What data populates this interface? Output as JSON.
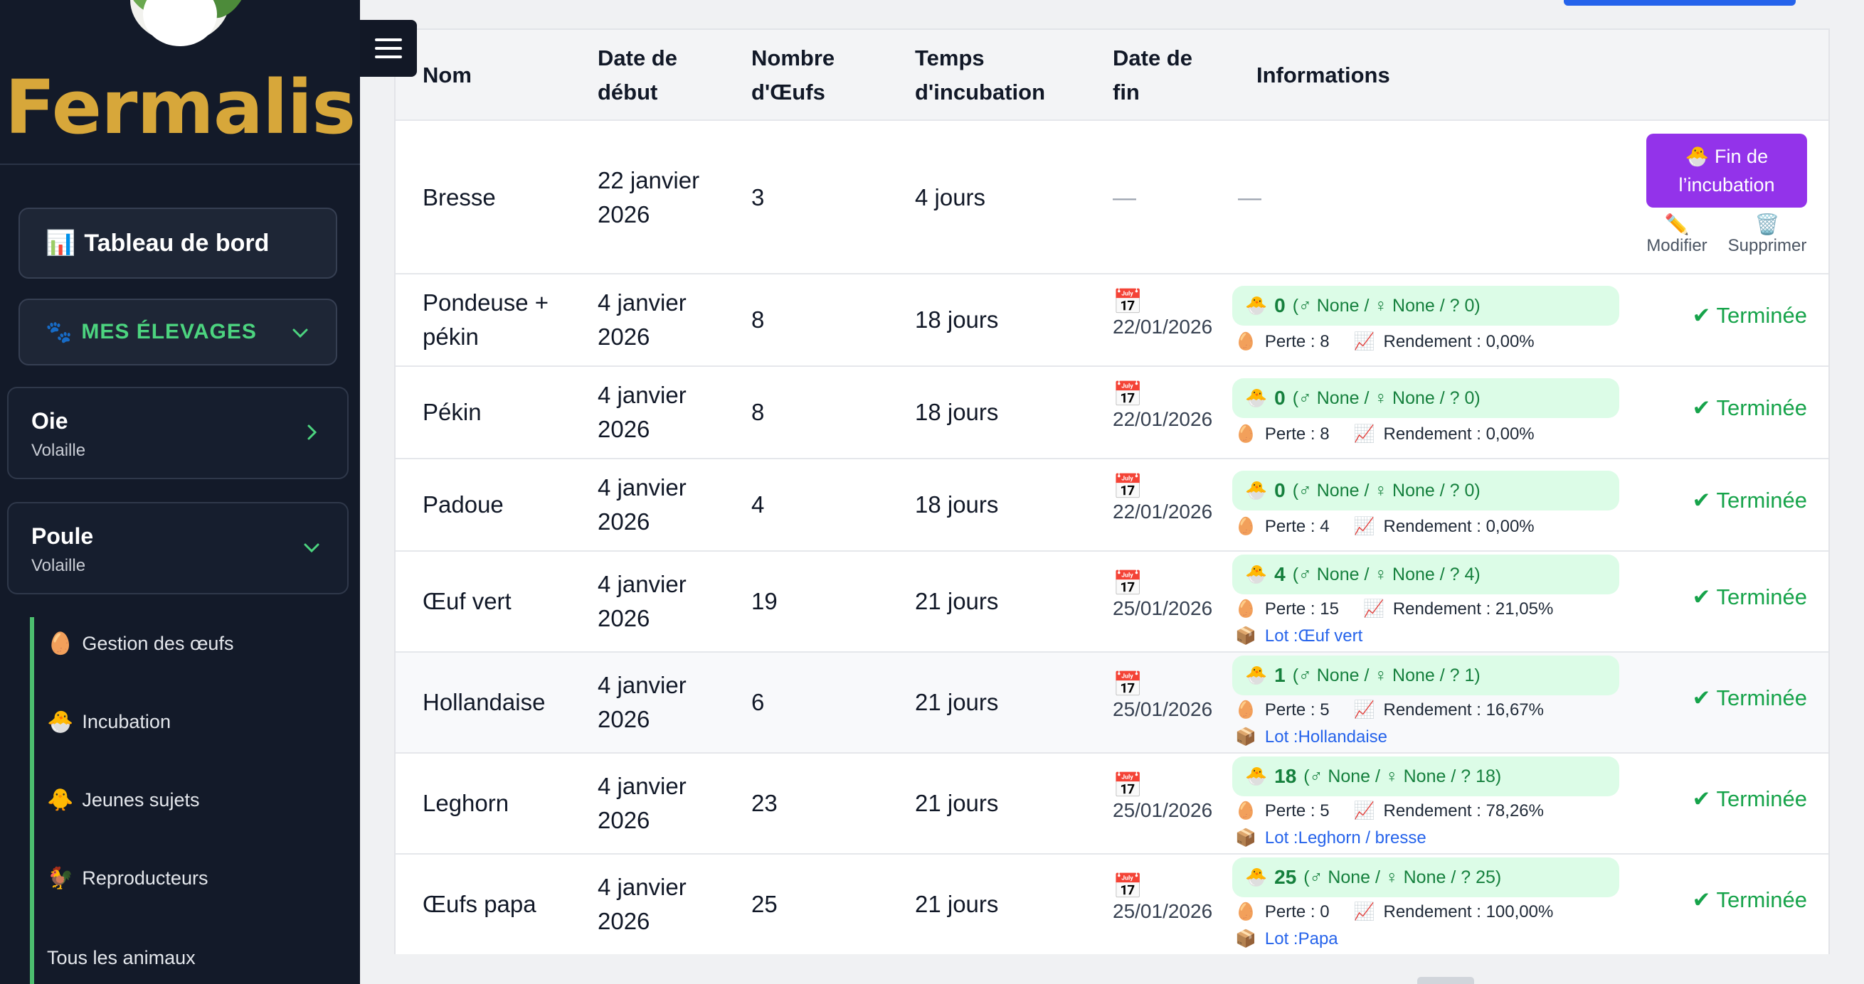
{
  "sidebar": {
    "logo_text": "Fermalis",
    "dashboard_label": "Tableau de bord",
    "dashboard_icon": "📊",
    "elevages_label": "MES ÉLEVAGES",
    "elevages_icon": "🐾",
    "species": [
      {
        "name": "Oie",
        "sub": "Volaille"
      },
      {
        "name": "Poule",
        "sub": "Volaille"
      }
    ],
    "sub_items": [
      {
        "icon": "🥚",
        "label": "Gestion des œufs"
      },
      {
        "icon": "🐣",
        "label": "Incubation"
      },
      {
        "icon": "🐥",
        "label": "Jeunes sujets"
      },
      {
        "icon": "🐓",
        "label": "Reproducteurs"
      },
      {
        "icon": "",
        "label": "Tous les animaux"
      }
    ]
  },
  "table": {
    "headers": [
      "Nom",
      "Date de début",
      "Nombre d'Œufs",
      "Temps d'incubation",
      "Date de fin",
      "Informations"
    ],
    "first_row": {
      "nom": "Bresse",
      "date_debut": "22 janvier 2026",
      "oeufs": "3",
      "temps": "4 jours",
      "date_fin": "—",
      "info": "—",
      "fin_button": "Fin de l’incubation",
      "fin_icon": "🐣",
      "edit_label": "Modifier",
      "edit_icon": "✏️",
      "delete_label": "Supprimer",
      "delete_icon": "🗑️"
    },
    "rows": [
      {
        "nom": "Pondeuse + pékin",
        "date_debut": "4 janvier 2026",
        "oeufs": "8",
        "temps": "18 jours",
        "date_fin": "22/01/2026",
        "hatched": "0",
        "hatched_detail": "(♂ None / ♀ None / ? 0)",
        "perte": "Perte : 8",
        "rendement": "Rendement : 0,00%",
        "lot": "",
        "status": "✔ Terminée"
      },
      {
        "nom": "Pékin",
        "date_debut": "4 janvier 2026",
        "oeufs": "8",
        "temps": "18 jours",
        "date_fin": "22/01/2026",
        "hatched": "0",
        "hatched_detail": "(♂ None / ♀ None / ? 0)",
        "perte": "Perte : 8",
        "rendement": "Rendement : 0,00%",
        "lot": "",
        "status": "✔ Terminée"
      },
      {
        "nom": "Padoue",
        "date_debut": "4 janvier 2026",
        "oeufs": "4",
        "temps": "18 jours",
        "date_fin": "22/01/2026",
        "hatched": "0",
        "hatched_detail": "(♂ None / ♀ None / ? 0)",
        "perte": "Perte : 4",
        "rendement": "Rendement : 0,00%",
        "lot": "",
        "status": "✔ Terminée"
      },
      {
        "nom": "Œuf vert",
        "date_debut": "4 janvier 2026",
        "oeufs": "19",
        "temps": "21 jours",
        "date_fin": "25/01/2026",
        "hatched": "4",
        "hatched_detail": "(♂ None / ♀ None / ? 4)",
        "perte": "Perte : 15",
        "rendement": "Rendement : 21,05%",
        "lot": "Lot :Œuf vert",
        "status": "✔ Terminée"
      },
      {
        "nom": "Hollandaise",
        "date_debut": "4 janvier 2026",
        "oeufs": "6",
        "temps": "21 jours",
        "date_fin": "25/01/2026",
        "hatched": "1",
        "hatched_detail": "(♂ None / ♀ None / ? 1)",
        "perte": "Perte : 5",
        "rendement": "Rendement : 16,67%",
        "lot": "Lot :Hollandaise",
        "status": "✔ Terminée"
      },
      {
        "nom": "Leghorn",
        "date_debut": "4 janvier 2026",
        "oeufs": "23",
        "temps": "21 jours",
        "date_fin": "25/01/2026",
        "hatched": "18",
        "hatched_detail": "(♂ None / ♀ None / ? 18)",
        "perte": "Perte : 5",
        "rendement": "Rendement : 78,26%",
        "lot": "Lot :Leghorn / bresse",
        "status": "✔ Terminée"
      },
      {
        "nom": "Œufs papa",
        "date_debut": "4 janvier 2026",
        "oeufs": "25",
        "temps": "21 jours",
        "date_fin": "25/01/2026",
        "hatched": "25",
        "hatched_detail": "(♂ None / ♀ None / ? 25)",
        "perte": "Perte : 0",
        "rendement": "Rendement : 100,00%",
        "lot": "Lot :Papa",
        "status": "✔ Terminée"
      }
    ]
  },
  "icons": {
    "hatch": "🐣",
    "egg": "🥚",
    "chart": "📈",
    "box": "📦",
    "calendar": "📅"
  },
  "colors": {
    "sidebar_bg": "#131a29",
    "logo_gold": "#d7a73a",
    "accent_green": "#4cd47f",
    "fin_button": "#9333ea",
    "status_green": "#16a34a",
    "pill_bg": "#dcfce7",
    "link_blue": "#2563eb"
  }
}
